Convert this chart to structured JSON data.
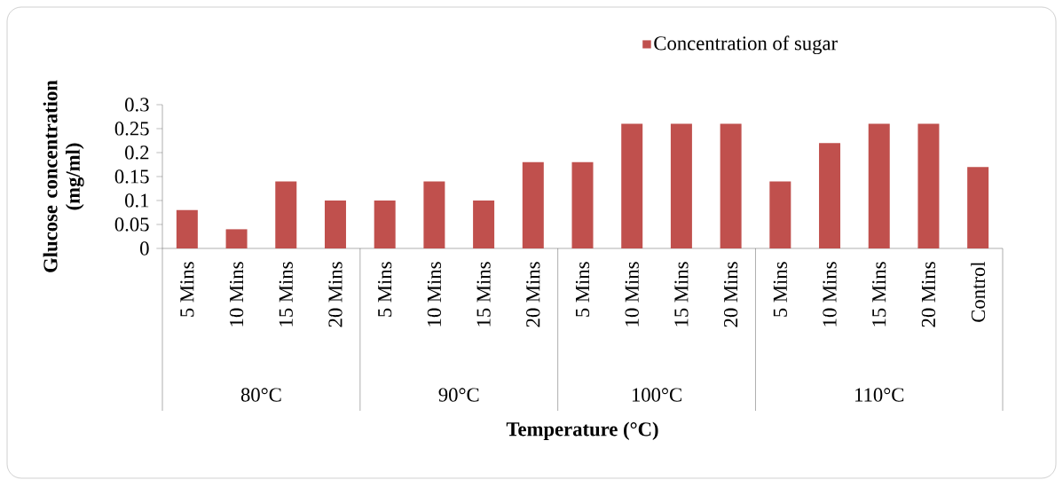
{
  "chart_data": {
    "type": "bar",
    "xlabel": "Temperature (°C)",
    "ylabel": "Glucose concentration (mg/ml)",
    "categories": [
      "5 Mins",
      "10 Mins",
      "15 Mins",
      "20 Mins",
      "5 Mins",
      "10 Mins",
      "15 Mins",
      "20 Mins",
      "5 Mins",
      "10 Mins",
      "15 Mins",
      "20 Mins",
      "5 Mins",
      "10 Mins",
      "15 Mins",
      "20 Mins",
      "Control"
    ],
    "series": [
      {
        "name": "Concentration of sugar",
        "color": "#c0504d",
        "values": [
          0.08,
          0.04,
          0.14,
          0.1,
          0.1,
          0.14,
          0.1,
          0.18,
          0.18,
          0.26,
          0.26,
          0.26,
          0.14,
          0.22,
          0.26,
          0.26,
          0.17
        ]
      }
    ],
    "annotations": [
      "80°C",
      "90°C",
      "100°C",
      "110°C"
    ],
    "ylim": [
      0,
      0.3
    ],
    "yticks": [
      0,
      0.05,
      0.1,
      0.15,
      0.2,
      0.25,
      0.3
    ],
    "legend": "top right"
  }
}
